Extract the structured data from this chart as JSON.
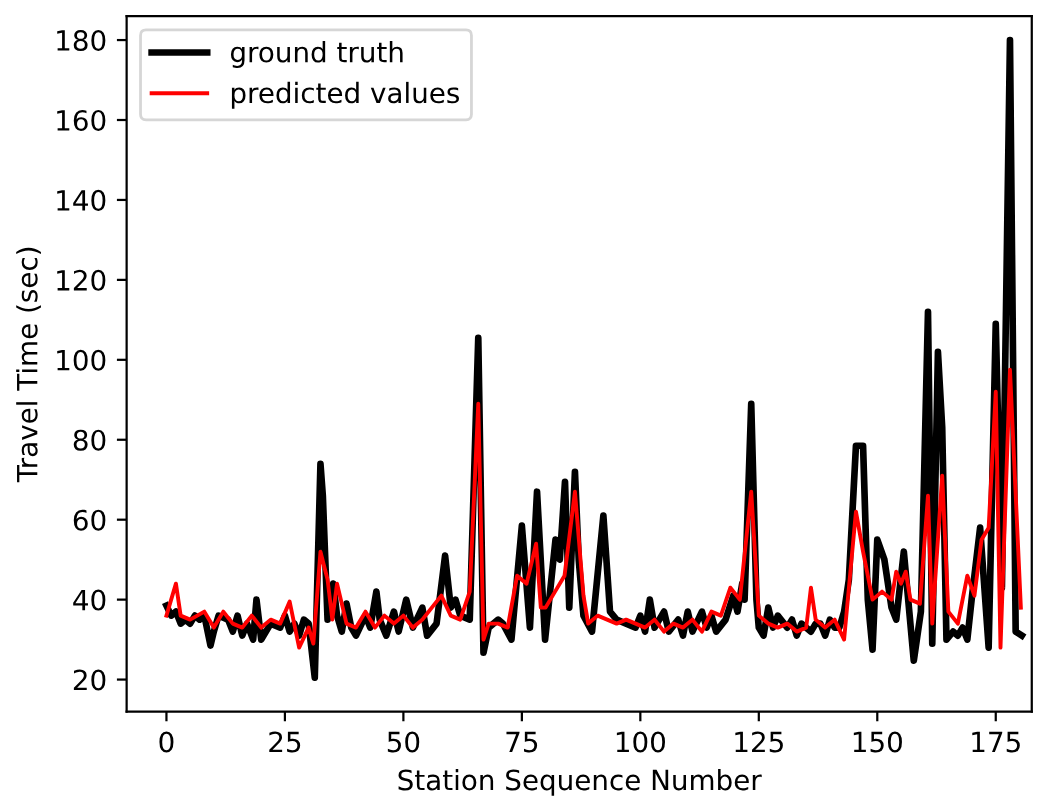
{
  "chart_data": {
    "type": "line",
    "xlabel": "Station Sequence Number",
    "ylabel": "Travel Time (sec)",
    "xlim": [
      -8.4,
      182.6
    ],
    "xticks": [
      0,
      25,
      50,
      75,
      100,
      125,
      150,
      175
    ],
    "ylim": [
      12,
      186
    ],
    "yticks": [
      20,
      40,
      60,
      80,
      100,
      120,
      140,
      160,
      180
    ],
    "grid": false,
    "legend": "top left",
    "series": [
      {
        "name": "ground truth",
        "color": "#000000",
        "x": [
          0,
          1,
          2,
          3,
          4,
          5,
          6,
          7,
          8,
          9.3,
          10,
          11,
          13,
          14,
          15,
          16,
          17,
          18.3,
          19,
          20,
          21,
          22,
          24,
          25,
          26,
          27,
          28,
          29,
          30,
          31.3,
          32.5,
          33,
          34,
          35.2,
          36,
          37,
          38,
          39,
          40,
          42,
          43,
          44.3,
          45,
          46.4,
          48,
          49,
          50.6,
          52,
          54,
          55,
          57,
          58.8,
          60,
          61,
          62,
          64,
          65.8,
          66.9,
          68,
          70,
          71,
          72.8,
          75,
          76.7,
          78.2,
          79.9,
          82.1,
          83,
          84.1,
          85,
          86.2,
          87,
          88,
          89.8,
          92.2,
          93.6,
          95,
          97,
          99,
          100,
          101,
          102,
          103,
          105,
          106,
          108,
          109,
          110,
          111,
          113,
          114,
          115,
          116,
          118,
          119.6,
          120.5,
          121.5,
          122,
          123.4,
          124.5,
          125,
          126,
          127,
          128,
          129,
          131,
          132,
          133,
          134,
          136,
          137,
          138,
          139,
          140,
          141,
          142,
          143,
          144,
          145.5,
          147,
          148,
          149,
          150,
          151.5,
          153,
          154,
          155.6,
          157.7,
          159.2,
          160.7,
          161.6,
          162.8,
          163.7,
          164.6,
          166,
          167,
          168,
          169,
          170,
          171.7,
          173.5,
          175,
          176.3,
          178,
          179.2,
          180.5
        ],
        "values": [
          38.5,
          36,
          37,
          34,
          35,
          34,
          36,
          35,
          36,
          28.5,
          32,
          36,
          35,
          32,
          36,
          31,
          34,
          30,
          40,
          30,
          32,
          34,
          33,
          36,
          32,
          34,
          31,
          35,
          34,
          20.5,
          74,
          66,
          35,
          44,
          36,
          32,
          39,
          33,
          31,
          36,
          33,
          42,
          35,
          31,
          37,
          32,
          40,
          33,
          38,
          31,
          34,
          51,
          38,
          40,
          36,
          35,
          105.5,
          26.7,
          33,
          35,
          34,
          30,
          58.5,
          33,
          67,
          30,
          55,
          50,
          69.5,
          38,
          72,
          50,
          36,
          32,
          61,
          37,
          35,
          34,
          33,
          36,
          32,
          40,
          33,
          37,
          32,
          35,
          31,
          37,
          32,
          37,
          33,
          36,
          32,
          35,
          41,
          37,
          44,
          40,
          89,
          40,
          33,
          31,
          38,
          33,
          36,
          33,
          35,
          31,
          34,
          32,
          34,
          34,
          31,
          35,
          33,
          33,
          37,
          45,
          78.5,
          78.5,
          40,
          27.5,
          55,
          50,
          38,
          35,
          52,
          24.7,
          37,
          112,
          29,
          102,
          83,
          30,
          32,
          31,
          33,
          30,
          41,
          58,
          28,
          109,
          43,
          180,
          32,
          31
        ]
      },
      {
        "name": "predicted values",
        "color": "#ff0000",
        "x": [
          0,
          2,
          3,
          5,
          8,
          10,
          12,
          14,
          16,
          18,
          20,
          22,
          24,
          26,
          28,
          30,
          31,
          32.5,
          34,
          35,
          36,
          38,
          40,
          42,
          44,
          46,
          48,
          50,
          52,
          54,
          56,
          58,
          60,
          62,
          64,
          65.8,
          66.9,
          68,
          70,
          72,
          74,
          76,
          78,
          79,
          80,
          82,
          84,
          86.2,
          88,
          89,
          91,
          93,
          95,
          97,
          99,
          101,
          103,
          105,
          107,
          109,
          111,
          113,
          115,
          117,
          119,
          121,
          123.4,
          125,
          127,
          129,
          131,
          133,
          135,
          136,
          137,
          139,
          141,
          143,
          145.5,
          147,
          149,
          151,
          153,
          154,
          155,
          156,
          157,
          159,
          160.7,
          161.6,
          163.7,
          165,
          167,
          169,
          170.5,
          172,
          173.5,
          175,
          176,
          178,
          180.3
        ],
        "values": [
          36,
          44,
          36,
          35,
          37,
          33,
          37,
          34,
          33,
          36,
          33,
          35,
          34,
          39.5,
          28,
          33,
          29,
          52,
          45,
          35,
          44,
          34,
          33,
          37,
          33,
          36,
          34,
          36,
          33,
          35,
          38,
          41,
          36,
          35,
          42,
          89,
          30,
          34,
          34,
          33,
          46,
          44,
          54,
          38,
          38,
          42,
          46,
          67,
          41,
          34,
          36,
          35,
          34,
          35,
          34,
          33,
          35,
          32,
          34,
          33,
          35,
          32,
          37,
          36,
          43,
          40,
          67,
          36,
          34,
          33,
          34,
          32,
          33,
          43,
          35,
          33,
          35,
          30,
          62,
          52,
          40,
          42,
          40,
          47,
          44,
          47,
          40,
          39,
          66,
          34,
          71,
          37,
          34,
          46,
          41,
          55,
          58,
          92,
          28,
          97.5,
          38
        ]
      }
    ]
  }
}
